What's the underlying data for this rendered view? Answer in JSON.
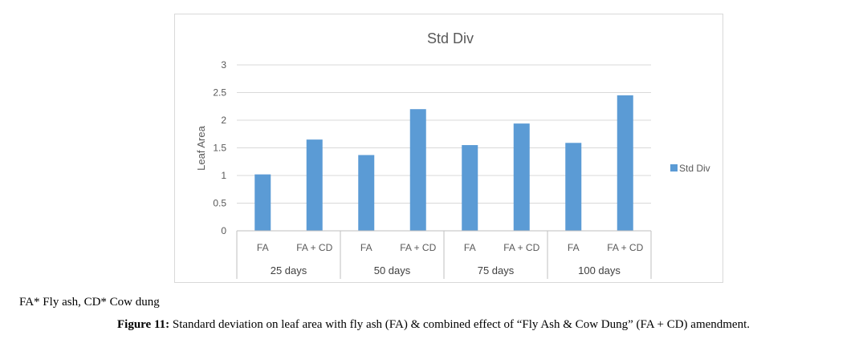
{
  "chart_data": {
    "type": "bar",
    "title": "Std Div",
    "ylabel": "Leaf Area",
    "xlabel": "",
    "ylim": [
      0,
      3
    ],
    "yticks": [
      "0",
      "0.5",
      "1",
      "1.5",
      "2",
      "2.5",
      "3"
    ],
    "groups": [
      "25 days",
      "50 days",
      "75 days",
      "100 days"
    ],
    "categories": [
      "FA",
      "FA + CD",
      "FA",
      "FA + CD",
      "FA",
      "FA + CD",
      "FA",
      "FA + CD"
    ],
    "series": [
      {
        "name": "Std Div",
        "values": [
          1.02,
          1.65,
          1.37,
          2.2,
          1.55,
          1.94,
          1.59,
          2.45
        ]
      }
    ],
    "legend_position": "right",
    "grid": true,
    "bar_color": "#5b9bd5"
  },
  "footnote": "FA* Fly ash, CD* Cow dung",
  "caption": {
    "label": "Figure 11:",
    "text": " Standard deviation on leaf area with fly ash (FA) & combined effect of “Fly Ash & Cow Dung” (FA + CD) amendment."
  }
}
